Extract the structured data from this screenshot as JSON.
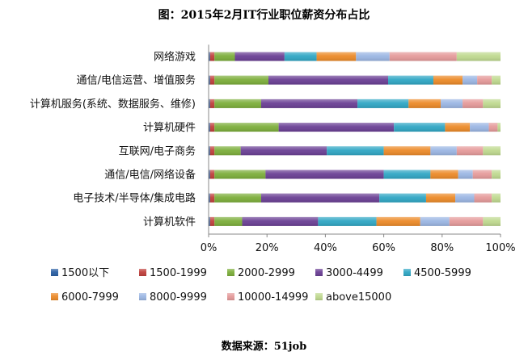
{
  "title": "图：2015年2月IT行业职位薪资分布占比",
  "source": "数据来源：51job",
  "colors": [
    "#2a5fa3",
    "#c0403c",
    "#7cae3a",
    "#6a3f94",
    "#2fa6c4",
    "#ec8a28",
    "#9bb6e3",
    "#e59a9a",
    "#bfd98f"
  ],
  "chart_data": {
    "type": "bar",
    "orientation": "horizontal",
    "stacked": "percent",
    "categories": [
      "网络游戏",
      "通信/电信运营、增值服务",
      "计算机服务(系统、数据服务、维修)",
      "计算机硬件",
      "互联网/电子商务",
      "通信/电信/网络设备",
      "电子技术/半导体/集成电路",
      "计算机软件"
    ],
    "xlim": [
      0,
      100
    ],
    "xticks": [
      "0%",
      "20%",
      "40%",
      "60%",
      "80%",
      "100%"
    ],
    "grid": false,
    "legend_position": "bottom",
    "series": [
      {
        "name": "1500以下",
        "values": [
          0.5,
          0.5,
          0.5,
          0.5,
          0.5,
          0.5,
          0.5,
          0.5
        ]
      },
      {
        "name": "1500-1999",
        "values": [
          1.5,
          1.5,
          1.5,
          1.5,
          1.5,
          1.5,
          1.5,
          1.5
        ]
      },
      {
        "name": "2000-2999",
        "values": [
          7,
          18.5,
          16,
          22,
          9,
          17.5,
          16,
          9.5
        ]
      },
      {
        "name": "3000-4499",
        "values": [
          17,
          41,
          33,
          39.5,
          29.5,
          40.5,
          40.5,
          26
        ]
      },
      {
        "name": "4500-5999",
        "values": [
          11,
          15.5,
          17.5,
          17.5,
          19.5,
          16,
          16,
          20
        ]
      },
      {
        "name": "6000-7999",
        "values": [
          13.5,
          10,
          11,
          8.5,
          16,
          9.5,
          10,
          15
        ]
      },
      {
        "name": "8000-9999",
        "values": [
          11.5,
          5,
          7.5,
          6.5,
          9,
          5,
          6.5,
          10
        ]
      },
      {
        "name": "10000-14999",
        "values": [
          23,
          5,
          7,
          3,
          9,
          6.5,
          6,
          11.5
        ]
      },
      {
        "name": "above15000",
        "values": [
          15,
          3,
          6,
          1,
          6,
          3,
          3,
          6
        ]
      }
    ]
  }
}
